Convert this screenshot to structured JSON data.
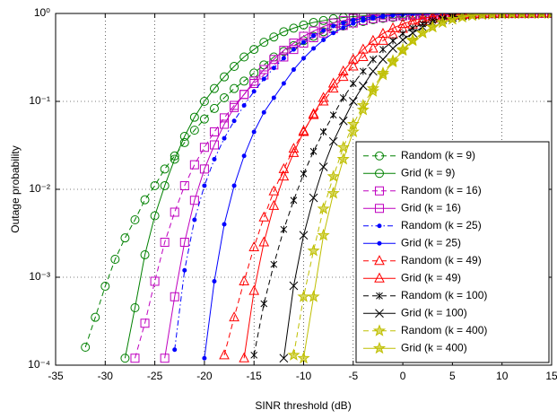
{
  "chart_data": {
    "type": "line",
    "xlabel": "SINR threshold (dB)",
    "ylabel": "Outage probability",
    "xlim": [
      -35,
      15
    ],
    "xticks": [
      -35,
      -30,
      -25,
      -20,
      -15,
      -10,
      -5,
      0,
      5,
      10,
      15
    ],
    "ylim": [
      0.0001,
      1
    ],
    "yscale": "log",
    "yticks": [
      {
        "value": 0.0001,
        "label": "10⁻⁴"
      },
      {
        "value": 0.001,
        "label": "10⁻³"
      },
      {
        "value": 0.01,
        "label": "10⁻²"
      },
      {
        "value": 0.1,
        "label": "10⁻¹"
      },
      {
        "value": 1,
        "label": "10⁰"
      }
    ],
    "grid": true,
    "legend": "lower right",
    "x": [
      -35,
      -34,
      -33,
      -32,
      -31,
      -30,
      -29,
      -28,
      -27,
      -26,
      -25,
      -24,
      -23,
      -22,
      -21,
      -20,
      -19,
      -18,
      -17,
      -16,
      -15,
      -14,
      -13,
      -12,
      -11,
      -10,
      -9,
      -8,
      -7,
      -6,
      -5,
      -4,
      -3,
      -2,
      -1,
      0,
      1,
      2,
      3,
      4,
      5,
      6,
      7,
      8,
      9,
      10,
      11,
      12,
      13,
      14,
      15
    ],
    "series": [
      {
        "name": "Random (k = 9)",
        "color": "#008000",
        "linestyle": "dashed",
        "marker": "circle",
        "values": [
          null,
          null,
          null,
          0.00016,
          0.00035,
          0.00079,
          0.0016,
          0.0028,
          0.0045,
          0.0076,
          0.011,
          0.017,
          0.024,
          0.034,
          0.047,
          0.063,
          0.083,
          0.11,
          0.14,
          0.17,
          0.21,
          0.26,
          0.32,
          0.37,
          0.43,
          0.49,
          0.55,
          0.62,
          0.68,
          0.72,
          0.78,
          0.81,
          0.85,
          0.88,
          0.9,
          0.92,
          0.94,
          0.95,
          0.96,
          0.97,
          0.98,
          0.98,
          0.99,
          0.99,
          0.99,
          0.993,
          0.995,
          0.996,
          0.997,
          0.998,
          0.999
        ]
      },
      {
        "name": "Grid (k = 9)",
        "color": "#008000",
        "linestyle": "solid",
        "marker": "circle",
        "values": [
          null,
          null,
          null,
          null,
          null,
          null,
          null,
          0.00012,
          0.00045,
          0.0018,
          0.005,
          0.011,
          0.022,
          0.04,
          0.066,
          0.1,
          0.14,
          0.19,
          0.25,
          0.32,
          0.39,
          0.47,
          0.54,
          0.62,
          0.68,
          0.74,
          0.79,
          0.83,
          0.87,
          0.9,
          0.92,
          0.94,
          0.95,
          0.96,
          0.97,
          0.98,
          0.98,
          0.99,
          0.99,
          0.99,
          0.993,
          0.995,
          0.996,
          0.997,
          0.998,
          0.998,
          0.999,
          0.999,
          0.999,
          0.999,
          0.999
        ]
      },
      {
        "name": "Random (k = 16)",
        "color": "#bf00bf",
        "linestyle": "dashed",
        "marker": "square",
        "values": [
          null,
          null,
          null,
          null,
          null,
          null,
          null,
          null,
          0.00012,
          0.0003,
          0.0009,
          0.0025,
          0.0055,
          0.011,
          0.019,
          0.03,
          0.045,
          0.065,
          0.09,
          0.12,
          0.16,
          0.2,
          0.26,
          0.32,
          0.39,
          0.46,
          0.53,
          0.6,
          0.67,
          0.73,
          0.78,
          0.83,
          0.87,
          0.9,
          0.92,
          0.94,
          0.95,
          0.96,
          0.97,
          0.98,
          0.985,
          0.99,
          0.99,
          0.993,
          0.995,
          0.996,
          0.997,
          0.998,
          0.998,
          0.999,
          0.999
        ]
      },
      {
        "name": "Grid (k = 16)",
        "color": "#bf00bf",
        "linestyle": "solid",
        "marker": "square",
        "values": [
          null,
          null,
          null,
          null,
          null,
          null,
          null,
          null,
          null,
          null,
          null,
          0.00012,
          0.0006,
          0.0025,
          0.0075,
          0.017,
          0.032,
          0.055,
          0.085,
          0.12,
          0.17,
          0.23,
          0.3,
          0.38,
          0.46,
          0.55,
          0.63,
          0.71,
          0.78,
          0.83,
          0.88,
          0.91,
          0.94,
          0.96,
          0.97,
          0.98,
          0.985,
          0.99,
          0.993,
          0.995,
          0.996,
          0.997,
          0.998,
          0.998,
          0.999,
          0.999,
          0.999,
          0.999,
          0.999,
          0.999,
          0.999
        ]
      },
      {
        "name": "Random (k = 25)",
        "color": "#0000ff",
        "linestyle": "dashdot",
        "marker": "dot",
        "values": [
          null,
          null,
          null,
          null,
          null,
          null,
          null,
          null,
          null,
          null,
          null,
          null,
          0.00015,
          0.0012,
          0.0045,
          0.011,
          0.022,
          0.038,
          0.06,
          0.09,
          0.13,
          0.18,
          0.24,
          0.31,
          0.39,
          0.47,
          0.56,
          0.64,
          0.72,
          0.78,
          0.84,
          0.88,
          0.91,
          0.94,
          0.96,
          0.97,
          0.98,
          0.985,
          0.99,
          0.993,
          0.995,
          0.996,
          0.997,
          0.998,
          0.999,
          0.999,
          0.999,
          0.999,
          0.999,
          0.999,
          0.999
        ]
      },
      {
        "name": "Grid (k = 25)",
        "color": "#0000ff",
        "linestyle": "solid",
        "marker": "dot",
        "values": [
          null,
          null,
          null,
          null,
          null,
          null,
          null,
          null,
          null,
          null,
          null,
          null,
          null,
          null,
          null,
          0.00012,
          0.0009,
          0.004,
          0.011,
          0.024,
          0.045,
          0.075,
          0.11,
          0.16,
          0.23,
          0.31,
          0.4,
          0.5,
          0.6,
          0.69,
          0.77,
          0.83,
          0.88,
          0.92,
          0.95,
          0.97,
          0.98,
          0.985,
          0.99,
          0.993,
          0.995,
          0.997,
          0.998,
          0.998,
          0.999,
          0.999,
          0.999,
          0.999,
          0.999,
          0.999,
          0.999
        ]
      },
      {
        "name": "Random (k = 49)",
        "color": "#ff0000",
        "linestyle": "dashed",
        "marker": "triangle",
        "values": [
          null,
          null,
          null,
          null,
          null,
          null,
          null,
          null,
          null,
          null,
          null,
          null,
          null,
          null,
          null,
          null,
          null,
          0.00013,
          0.00035,
          0.0009,
          0.0022,
          0.0048,
          0.0095,
          0.017,
          0.029,
          0.046,
          0.07,
          0.1,
          0.14,
          0.19,
          0.25,
          0.32,
          0.4,
          0.49,
          0.58,
          0.67,
          0.75,
          0.82,
          0.87,
          0.91,
          0.94,
          0.96,
          0.975,
          0.985,
          0.99,
          0.993,
          0.995,
          0.997,
          0.998,
          0.999,
          0.999
        ]
      },
      {
        "name": "Grid (k = 49)",
        "color": "#ff0000",
        "linestyle": "solid",
        "marker": "triangle",
        "values": [
          null,
          null,
          null,
          null,
          null,
          null,
          null,
          null,
          null,
          null,
          null,
          null,
          null,
          null,
          null,
          null,
          null,
          null,
          null,
          0.00012,
          0.0007,
          0.0025,
          0.0065,
          0.014,
          0.026,
          0.045,
          0.072,
          0.11,
          0.16,
          0.22,
          0.3,
          0.39,
          0.49,
          0.59,
          0.68,
          0.76,
          0.83,
          0.88,
          0.92,
          0.95,
          0.97,
          0.98,
          0.985,
          0.99,
          0.994,
          0.996,
          0.997,
          0.998,
          0.999,
          0.999,
          0.999
        ]
      },
      {
        "name": "Random (k = 100)",
        "color": "#000000",
        "linestyle": "dashed",
        "marker": "star6",
        "values": [
          null,
          null,
          null,
          null,
          null,
          null,
          null,
          null,
          null,
          null,
          null,
          null,
          null,
          null,
          null,
          null,
          null,
          null,
          null,
          null,
          0.00013,
          0.0005,
          0.0014,
          0.0035,
          0.0075,
          0.015,
          0.027,
          0.045,
          0.07,
          0.11,
          0.16,
          0.22,
          0.3,
          0.39,
          0.49,
          0.59,
          0.68,
          0.76,
          0.83,
          0.88,
          0.92,
          0.95,
          0.97,
          0.98,
          0.99,
          0.993,
          0.995,
          0.997,
          0.998,
          0.999,
          0.999
        ]
      },
      {
        "name": "Grid (k = 100)",
        "color": "#000000",
        "linestyle": "solid",
        "marker": "x",
        "values": [
          null,
          null,
          null,
          null,
          null,
          null,
          null,
          null,
          null,
          null,
          null,
          null,
          null,
          null,
          null,
          null,
          null,
          null,
          null,
          null,
          null,
          null,
          null,
          0.00012,
          0.0008,
          0.003,
          0.008,
          0.018,
          0.035,
          0.06,
          0.1,
          0.15,
          0.22,
          0.3,
          0.4,
          0.5,
          0.6,
          0.7,
          0.78,
          0.85,
          0.9,
          0.94,
          0.96,
          0.975,
          0.985,
          0.99,
          0.994,
          0.996,
          0.998,
          0.999,
          0.999
        ]
      },
      {
        "name": "Random (k = 400)",
        "color": "#bfbf00",
        "linestyle": "dashed",
        "marker": "star",
        "values": [
          null,
          null,
          null,
          null,
          null,
          null,
          null,
          null,
          null,
          null,
          null,
          null,
          null,
          null,
          null,
          null,
          null,
          null,
          null,
          null,
          null,
          null,
          null,
          null,
          0.00013,
          0.0006,
          0.002,
          0.006,
          0.014,
          0.03,
          0.055,
          0.09,
          0.14,
          0.21,
          0.29,
          0.39,
          0.5,
          0.6,
          0.7,
          0.79,
          0.86,
          0.91,
          0.95,
          0.97,
          0.98,
          0.99,
          0.995,
          0.997,
          0.998,
          0.999,
          0.999
        ]
      },
      {
        "name": "Grid (k = 400)",
        "color": "#bfbf00",
        "linestyle": "solid",
        "marker": "star",
        "values": [
          null,
          null,
          null,
          null,
          null,
          null,
          null,
          null,
          null,
          null,
          null,
          null,
          null,
          null,
          null,
          null,
          null,
          null,
          null,
          null,
          null,
          null,
          null,
          null,
          null,
          0.00012,
          0.0006,
          0.003,
          0.009,
          0.022,
          0.045,
          0.08,
          0.13,
          0.2,
          0.28,
          0.38,
          0.49,
          0.6,
          0.7,
          0.79,
          0.86,
          0.91,
          0.95,
          0.97,
          0.98,
          0.99,
          0.995,
          0.997,
          0.998,
          0.999,
          0.999
        ]
      }
    ]
  }
}
